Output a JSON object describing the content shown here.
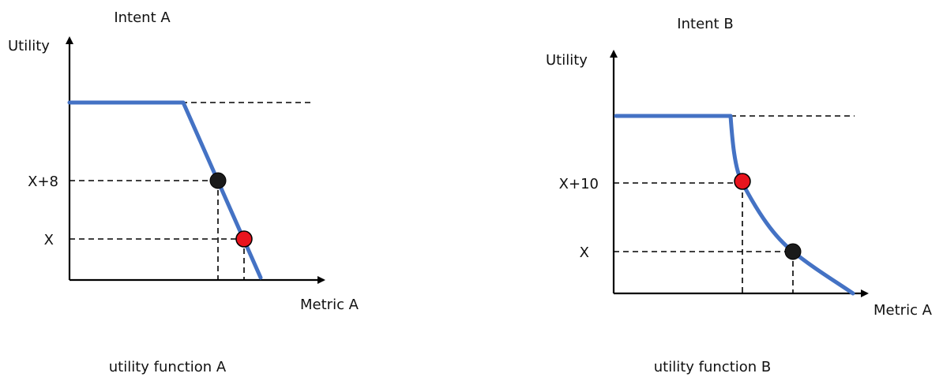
{
  "colors": {
    "curve": "#4472C4",
    "dot_black": "#1a1a1a",
    "dot_red": "#e8141e"
  },
  "left": {
    "intent": "Intent A",
    "y_axis_label": "Utility",
    "x_axis_label": "Metric A",
    "tick_upper": "X+8",
    "tick_lower": "X",
    "caption": "utility function A",
    "upper_dot_color": "black",
    "lower_dot_color": "red"
  },
  "right": {
    "intent": "Intent B",
    "y_axis_label": "Utility",
    "x_axis_label": "Metric A",
    "tick_upper": "X+10",
    "tick_lower": "X",
    "caption": "utility function B",
    "upper_dot_color": "red",
    "lower_dot_color": "black"
  }
}
